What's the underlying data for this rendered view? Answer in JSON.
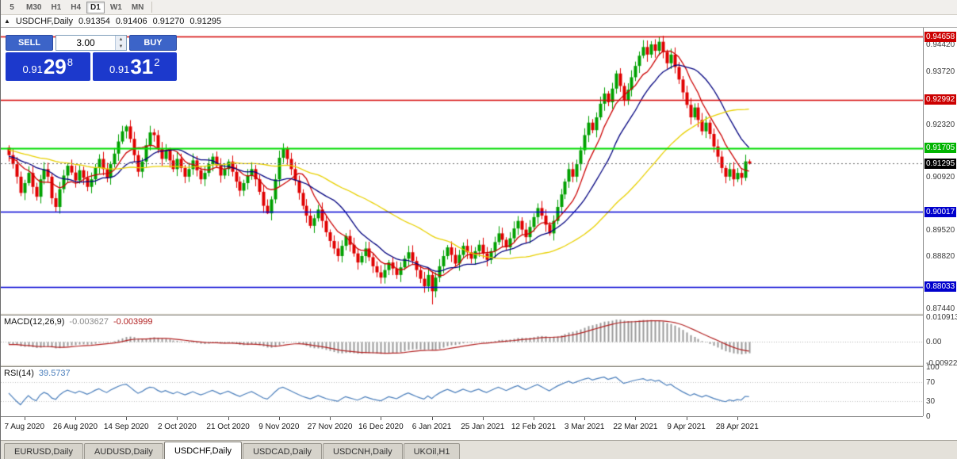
{
  "toolbar": {
    "timeframes": [
      {
        "label": "5",
        "active": false
      },
      {
        "label": "M30",
        "active": false
      },
      {
        "label": "H1",
        "active": false
      },
      {
        "label": "H4",
        "active": false
      },
      {
        "label": "D1",
        "active": true
      },
      {
        "label": "W1",
        "active": false
      },
      {
        "label": "MN",
        "active": false
      }
    ]
  },
  "chart_header": {
    "collapse_icon": "▲",
    "symbol": "USDCHF,Daily",
    "open": "0.91354",
    "high": "0.91406",
    "low": "0.91270",
    "close": "0.91295"
  },
  "one_click": {
    "sell_label": "SELL",
    "buy_label": "BUY",
    "volume": "3.00",
    "spin_up_icon": "▲",
    "spin_down_icon": "▼",
    "sell_price": {
      "base": "0.91",
      "big": "29",
      "sup": "8"
    },
    "buy_price": {
      "base": "0.91",
      "big": "31",
      "sup": "2"
    },
    "colors": {
      "button": "#3c64c8",
      "price_box": "#1c39cc"
    }
  },
  "price_scale": {
    "labels": [
      "0.94420",
      "0.93720",
      "0.92320",
      "0.90920",
      "0.89520",
      "0.88820",
      "0.87440"
    ],
    "badges": [
      {
        "value": "0.94658",
        "color": "#cc0000"
      },
      {
        "value": "0.92992",
        "color": "#cc0000"
      },
      {
        "value": "0.91705",
        "color": "#00b400"
      },
      {
        "value": "0.91295",
        "color": "#000000"
      },
      {
        "value": "0.90017",
        "color": "#0000cc"
      },
      {
        "value": "0.88033",
        "color": "#0000cc"
      }
    ]
  },
  "chart_data": {
    "type": "candlestick",
    "symbol": "USDCHF",
    "timeframe": "Daily",
    "price_range": [
      0.8734,
      0.9489
    ],
    "current_price": 0.91295,
    "levels": [
      {
        "price": 0.94658,
        "color": "#d40000",
        "width": 1.6
      },
      {
        "price": 0.92992,
        "color": "#d40000",
        "width": 1.6
      },
      {
        "price": 0.91705,
        "color": "#00dc00",
        "width": 2.2
      },
      {
        "price": 0.90017,
        "color": "#0000d4",
        "width": 1.6
      },
      {
        "price": 0.88033,
        "color": "#0000d4",
        "width": 1.6
      }
    ],
    "colors": {
      "up": "#00a000",
      "down": "#e00000"
    },
    "moving_averages": [
      {
        "period": 8,
        "color": "#cc0000"
      },
      {
        "period": 17,
        "color": "#00007f"
      },
      {
        "period": 45,
        "color": "#e8d000"
      }
    ],
    "pre_closes": [
      0.933,
      0.9318,
      0.9325,
      0.9305,
      0.929,
      0.9298,
      0.928,
      0.9265,
      0.9272,
      0.9255,
      0.9248,
      0.9256,
      0.924,
      0.9228,
      0.9235,
      0.922,
      0.921,
      0.9218,
      0.9205,
      0.9195,
      0.9202,
      0.919,
      0.918,
      0.9188,
      0.9175,
      0.9165,
      0.9172,
      0.916,
      0.9152,
      0.9158,
      0.9165,
      0.9172,
      0.918,
      0.917,
      0.9162,
      0.917,
      0.9178,
      0.9168,
      0.9158,
      0.9165,
      0.9172,
      0.9162,
      0.9152,
      0.9158,
      0.9165,
      0.9155,
      0.9145,
      0.9152,
      0.916,
      0.915,
      0.9142,
      0.9148,
      0.9155,
      0.9145,
      0.9138,
      0.9145,
      0.9152,
      0.9142,
      0.9135,
      0.9148
    ],
    "closes": [
      0.9152,
      0.9128,
      0.9095,
      0.9052,
      0.9078,
      0.9105,
      0.9068,
      0.9042,
      0.9088,
      0.9115,
      0.9095,
      0.9038,
      0.9015,
      0.9062,
      0.9098,
      0.9124,
      0.9106,
      0.9085,
      0.9112,
      0.9092,
      0.9068,
      0.9088,
      0.9118,
      0.9142,
      0.9115,
      0.9092,
      0.9128,
      0.9156,
      0.9188,
      0.9215,
      0.9228,
      0.9195,
      0.9152,
      0.9108,
      0.9135,
      0.9178,
      0.9212,
      0.9205,
      0.9168,
      0.9142,
      0.9165,
      0.9138,
      0.9115,
      0.9142,
      0.9118,
      0.9095,
      0.9115,
      0.9138,
      0.9112,
      0.9088,
      0.9105,
      0.9128,
      0.9148,
      0.9125,
      0.9098,
      0.9115,
      0.9135,
      0.9108,
      0.9082,
      0.9058,
      0.9078,
      0.9098,
      0.9115,
      0.9088,
      0.9055,
      0.9018,
      0.8998,
      0.9035,
      0.9088,
      0.9145,
      0.9168,
      0.9142,
      0.9115,
      0.9085,
      0.9052,
      0.9018,
      0.8992,
      0.8965,
      0.8985,
      0.9008,
      0.8978,
      0.8948,
      0.8925,
      0.8905,
      0.8885,
      0.8912,
      0.8938,
      0.8915,
      0.8892,
      0.8868,
      0.8885,
      0.8905,
      0.8882,
      0.8858,
      0.8842,
      0.8828,
      0.8848,
      0.8868,
      0.8852,
      0.8835,
      0.8855,
      0.8878,
      0.8895,
      0.8872,
      0.8848,
      0.8825,
      0.8805,
      0.8835,
      0.8792,
      0.8828,
      0.8858,
      0.8885,
      0.8908,
      0.8888,
      0.8865,
      0.8888,
      0.8912,
      0.8895,
      0.8878,
      0.8898,
      0.8915,
      0.8892,
      0.8875,
      0.8898,
      0.8922,
      0.8945,
      0.8928,
      0.8908,
      0.8932,
      0.8958,
      0.8978,
      0.8955,
      0.8935,
      0.8962,
      0.8988,
      0.9012,
      0.8992,
      0.8968,
      0.8945,
      0.8978,
      0.9015,
      0.9048,
      0.9082,
      0.9115,
      0.9095,
      0.9128,
      0.9165,
      0.9205,
      0.9238,
      0.9218,
      0.9252,
      0.9288,
      0.9315,
      0.9292,
      0.9328,
      0.9368,
      0.9335,
      0.9298,
      0.9325,
      0.9358,
      0.9388,
      0.9415,
      0.9438,
      0.9418,
      0.9445,
      0.9428,
      0.9452,
      0.9425,
      0.9395,
      0.9418,
      0.9385,
      0.9352,
      0.9318,
      0.9285,
      0.9252,
      0.9278,
      0.9245,
      0.9215,
      0.9238,
      0.9208,
      0.9175,
      0.9148,
      0.9118,
      0.9095,
      0.9115,
      0.9088,
      0.9105,
      0.9092,
      0.91354,
      0.91295
    ],
    "wick_overrides": {
      "30": {
        "high": 0.9232
      },
      "66": {
        "low": 0.8996
      },
      "108": {
        "low": 0.8757
      },
      "155": {
        "high": 0.9376
      },
      "166": {
        "high": 0.94658
      },
      "189": {
        "high": 0.91406,
        "low": 0.9127
      }
    },
    "date_labels": [
      {
        "index": 4,
        "label": "7 Aug 2020"
      },
      {
        "index": 17,
        "label": "26 Aug 2020"
      },
      {
        "index": 30,
        "label": "14 Sep 2020"
      },
      {
        "index": 43,
        "label": "2 Oct 2020"
      },
      {
        "index": 56,
        "label": "21 Oct 2020"
      },
      {
        "index": 69,
        "label": "9 Nov 2020"
      },
      {
        "index": 82,
        "label": "27 Nov 2020"
      },
      {
        "index": 95,
        "label": "16 Dec 2020"
      },
      {
        "index": 108,
        "label": "6 Jan 2021"
      },
      {
        "index": 121,
        "label": "25 Jan 2021"
      },
      {
        "index": 134,
        "label": "12 Feb 2021"
      },
      {
        "index": 147,
        "label": "3 Mar 2021"
      },
      {
        "index": 160,
        "label": "22 Mar 2021"
      },
      {
        "index": 173,
        "label": "9 Apr 2021"
      },
      {
        "index": 186,
        "label": "28 Apr 2021"
      }
    ]
  },
  "macd": {
    "label": "MACD(12,26,9)",
    "main_value": "-0.003627",
    "signal_value": "-0.003999",
    "fast": 12,
    "slow": 26,
    "signal": 9,
    "scale": [
      "0.010913",
      "0.00",
      "-0.00922"
    ],
    "colors": {
      "histogram": "#9a9a9a",
      "signal": "#b22222"
    }
  },
  "rsi": {
    "label": "RSI(14)",
    "value": "39.5737",
    "period": 14,
    "scale": [
      "100",
      "70",
      "30",
      "0"
    ],
    "levels": [
      70,
      30
    ],
    "color": "#4a7ebb"
  },
  "tabs": [
    {
      "label": "EURUSD,Daily",
      "active": false
    },
    {
      "label": "AUDUSD,Daily",
      "active": false
    },
    {
      "label": "USDCHF,Daily",
      "active": true
    },
    {
      "label": "USDCAD,Daily",
      "active": false
    },
    {
      "label": "USDCNH,Daily",
      "active": false
    },
    {
      "label": "UKOil,H1",
      "active": false
    }
  ]
}
